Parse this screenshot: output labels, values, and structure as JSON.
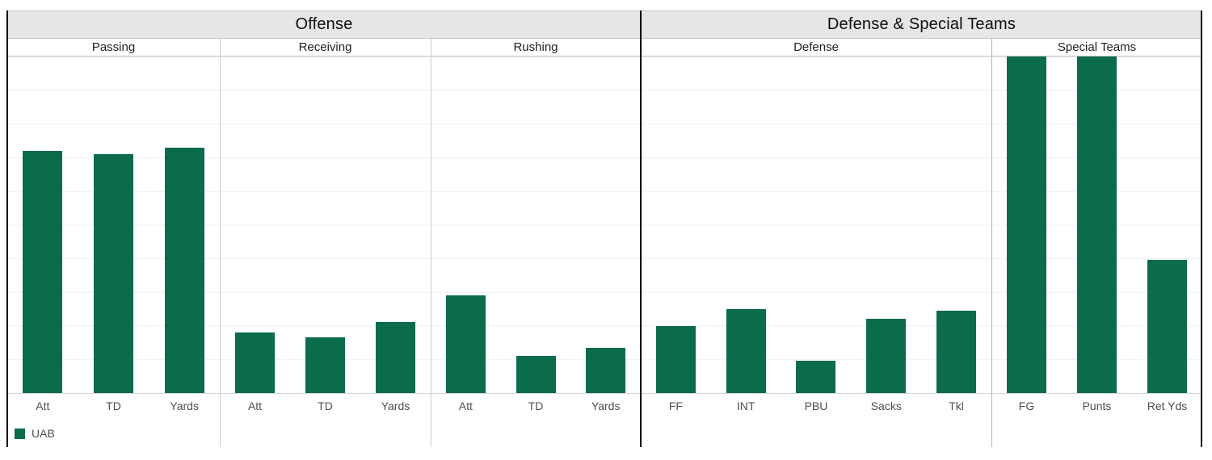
{
  "colors": {
    "bar": "#0a6b4d",
    "header_bg": "#e6e6e6",
    "gridline": "#efefef",
    "axis_line": "#d5d5d5",
    "section_divider": "#000000",
    "panel_divider": "#cccccc",
    "label_text": "#4f4f4f"
  },
  "legend": {
    "label": "UAB",
    "swatch_color": "#0a6b4d"
  },
  "chart_data": {
    "type": "bar",
    "title": "",
    "xlabel": "",
    "ylabel": "",
    "y_axis_labels_visible": false,
    "value_scale_note": "y-axis has no tick labels; values estimated in gridline units (plot spans 10 gridline intervals from 0 at baseline)",
    "ylim": [
      0,
      10
    ],
    "grid": true,
    "legend_position": "bottom-left",
    "legend_entries": [
      "UAB"
    ],
    "sections": [
      {
        "label": "Offense",
        "panel_count": 3
      },
      {
        "label": "Defense & Special Teams",
        "panel_count": 2
      }
    ],
    "panels": [
      {
        "name": "Passing",
        "section": "Offense",
        "categories": [
          "Att",
          "TD",
          "Yards"
        ],
        "values": [
          7.2,
          7.1,
          7.3
        ],
        "clipped": [
          false,
          false,
          false
        ]
      },
      {
        "name": "Receiving",
        "section": "Offense",
        "categories": [
          "Att",
          "TD",
          "Yards"
        ],
        "values": [
          1.8,
          1.65,
          2.1
        ],
        "clipped": [
          false,
          false,
          false
        ]
      },
      {
        "name": "Rushing",
        "section": "Offense",
        "categories": [
          "Att",
          "TD",
          "Yards"
        ],
        "values": [
          2.9,
          1.1,
          1.35
        ],
        "clipped": [
          false,
          false,
          false
        ]
      },
      {
        "name": "Defense",
        "section": "Defense & Special Teams",
        "categories": [
          "FF",
          "INT",
          "PBU",
          "Sacks",
          "Tkl"
        ],
        "values": [
          2.0,
          2.5,
          0.95,
          2.2,
          2.45
        ],
        "clipped": [
          false,
          false,
          false,
          false,
          false
        ]
      },
      {
        "name": "Special Teams",
        "section": "Defense & Special Teams",
        "categories": [
          "FG",
          "Punts",
          "Ret Yds"
        ],
        "values": [
          10.6,
          10.6,
          3.95
        ],
        "clipped": [
          true,
          true,
          false
        ]
      }
    ]
  }
}
